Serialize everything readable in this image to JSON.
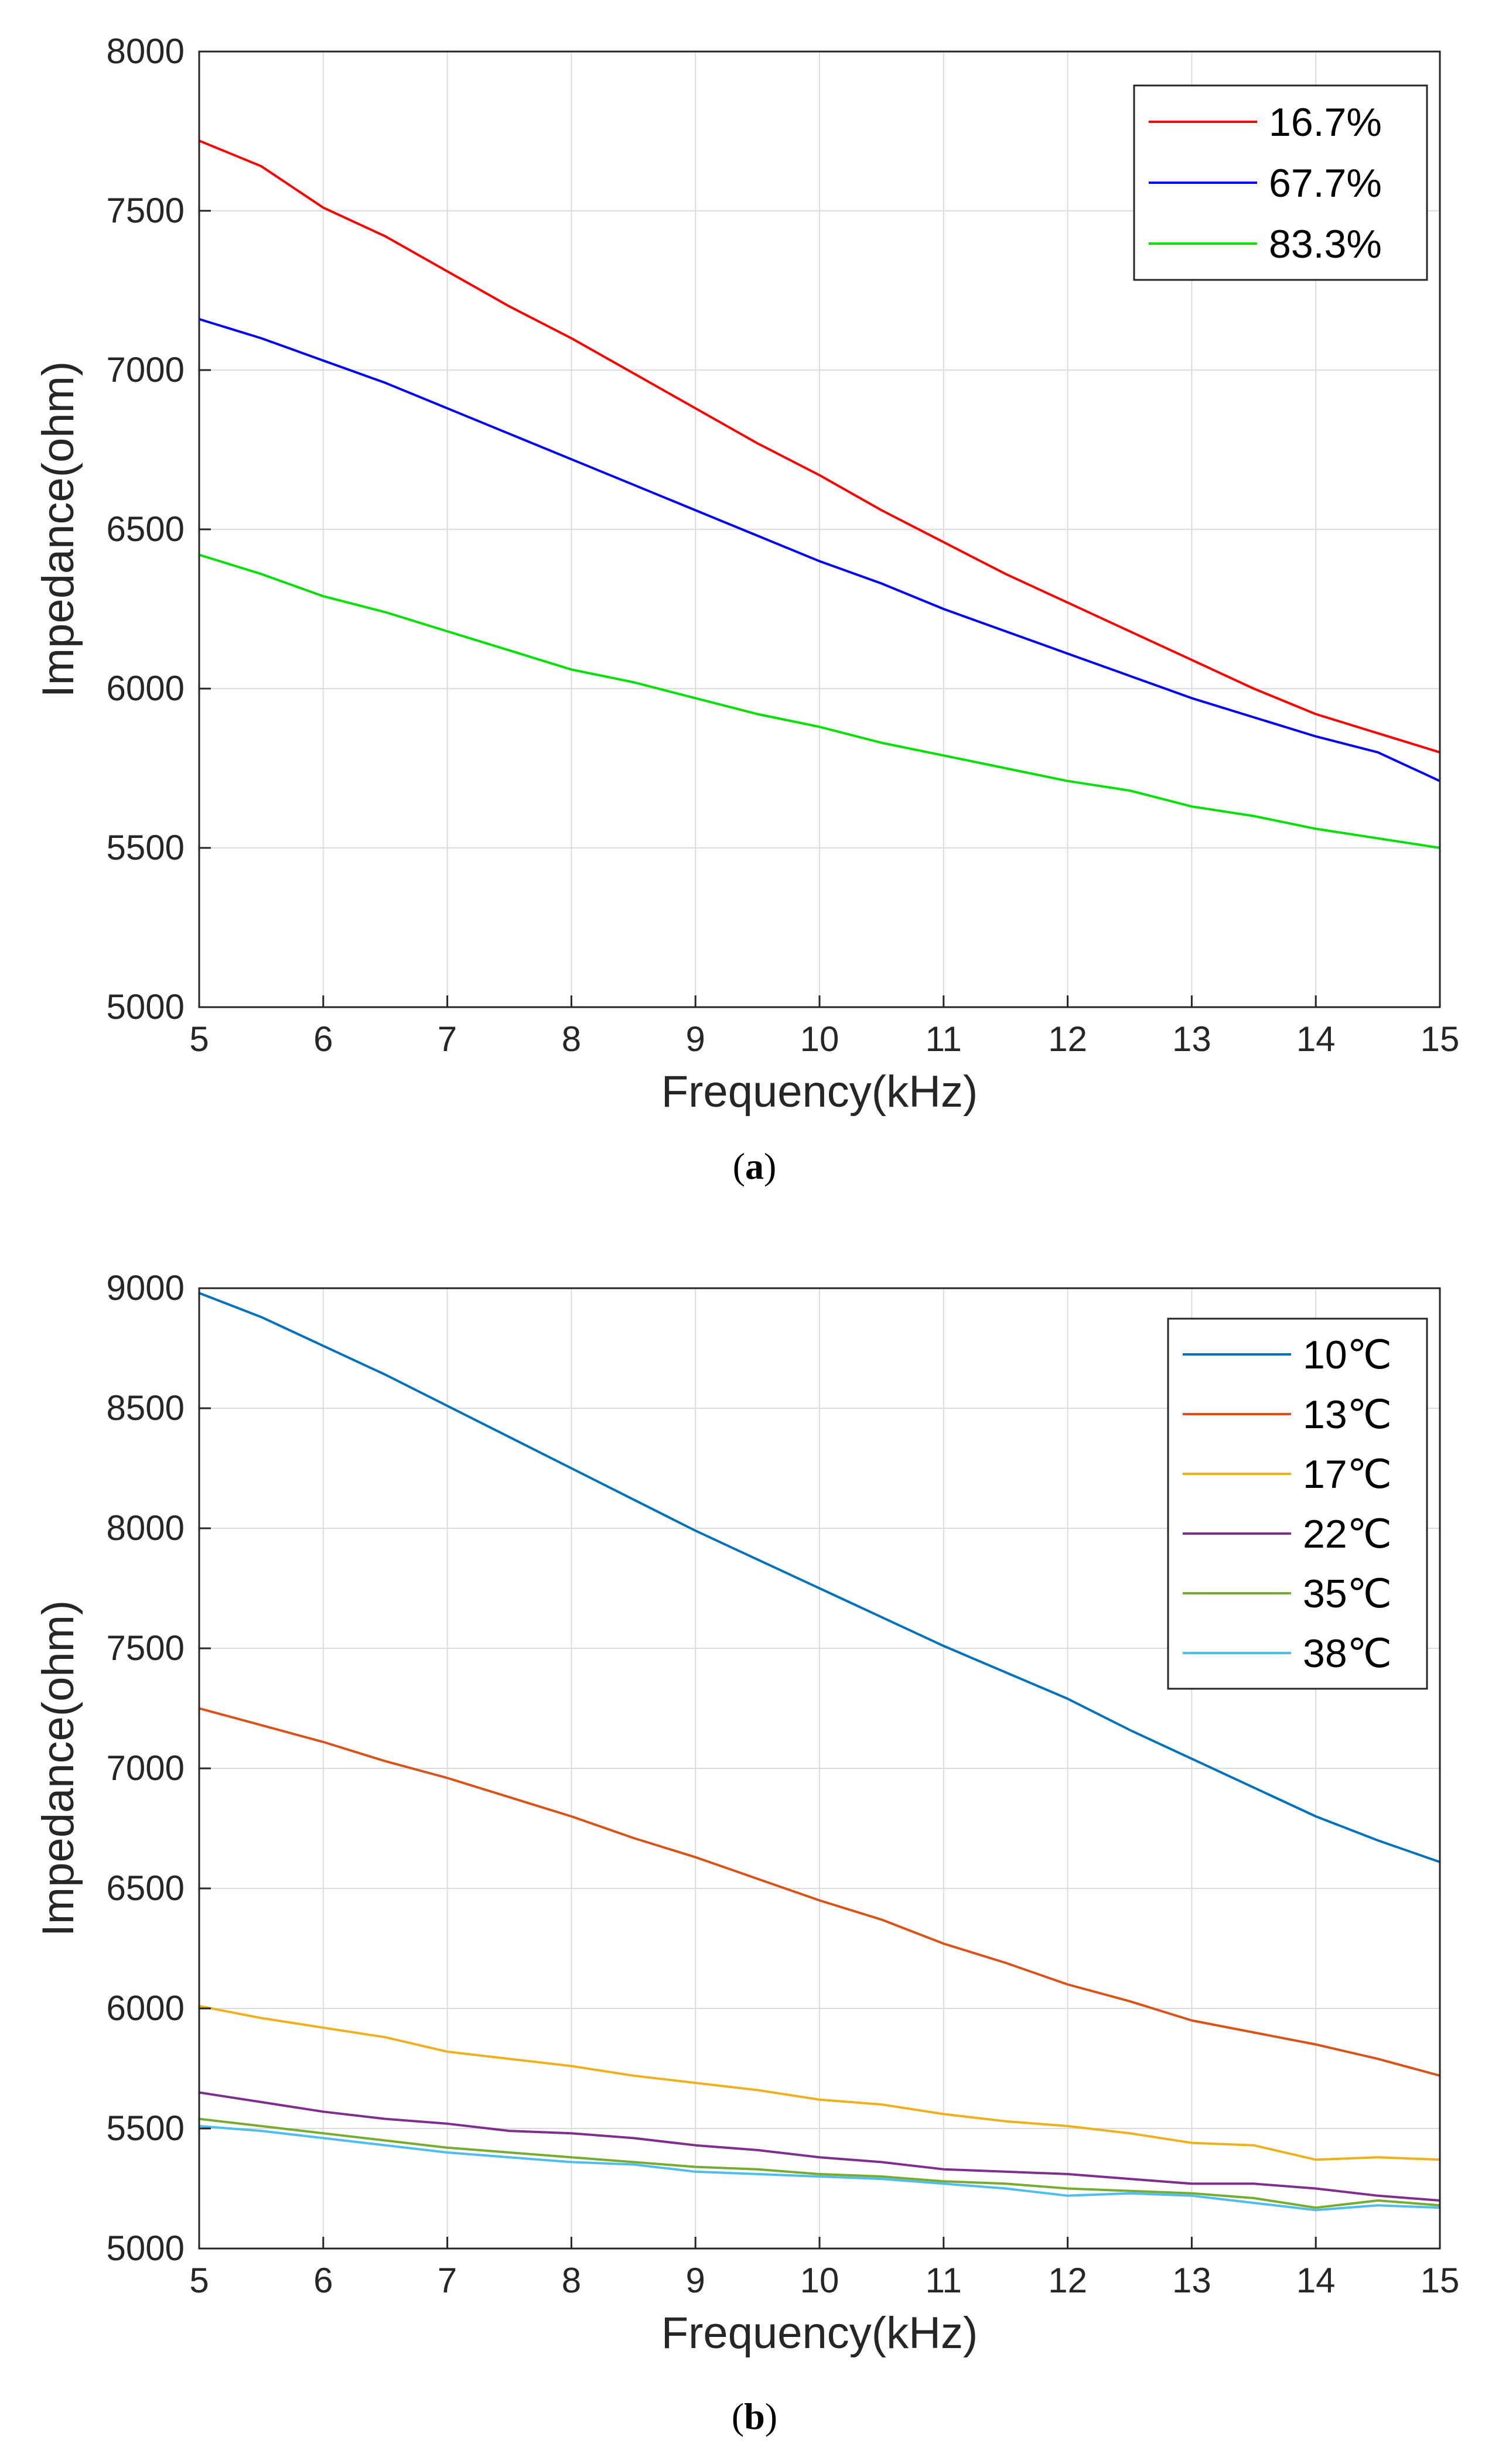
{
  "chart_data": [
    {
      "type": "line",
      "panel_label": "a",
      "title": "",
      "xlabel": "Frequency(kHz)",
      "ylabel": "Impedance(ohm)",
      "xlim": [
        5,
        15
      ],
      "ylim": [
        5000,
        8000
      ],
      "xticks": [
        5,
        6,
        7,
        8,
        9,
        10,
        11,
        12,
        13,
        14,
        15
      ],
      "yticks": [
        5000,
        5500,
        6000,
        6500,
        7000,
        7500,
        8000
      ],
      "grid": true,
      "legend_position": "top-right",
      "series": [
        {
          "name": "16.7%",
          "color": "#ff0000",
          "x": [
            5,
            5.5,
            6,
            6.5,
            7,
            7.5,
            8,
            8.5,
            9,
            9.5,
            10,
            10.5,
            11,
            11.5,
            12,
            12.5,
            13,
            13.5,
            14,
            14.5,
            15
          ],
          "values": [
            7720,
            7640,
            7510,
            7420,
            7310,
            7200,
            7100,
            6990,
            6880,
            6770,
            6670,
            6560,
            6460,
            6360,
            6270,
            6180,
            6090,
            6000,
            5920,
            5860,
            5800
          ]
        },
        {
          "name": "67.7%",
          "color": "#0000ff",
          "x": [
            5,
            5.5,
            6,
            6.5,
            7,
            7.5,
            8,
            8.5,
            9,
            9.5,
            10,
            10.5,
            11,
            11.5,
            12,
            12.5,
            13,
            13.5,
            14,
            14.5,
            15
          ],
          "values": [
            7160,
            7100,
            7030,
            6960,
            6880,
            6800,
            6720,
            6640,
            6560,
            6480,
            6400,
            6330,
            6250,
            6180,
            6110,
            6040,
            5970,
            5910,
            5850,
            5800,
            5710
          ]
        },
        {
          "name": "83.3%",
          "color": "#00e000",
          "x": [
            5,
            5.5,
            6,
            6.5,
            7,
            7.5,
            8,
            8.5,
            9,
            9.5,
            10,
            10.5,
            11,
            11.5,
            12,
            12.5,
            13,
            13.5,
            14,
            14.5,
            15
          ],
          "values": [
            6420,
            6360,
            6290,
            6240,
            6180,
            6120,
            6060,
            6020,
            5970,
            5920,
            5880,
            5830,
            5790,
            5750,
            5710,
            5680,
            5630,
            5600,
            5560,
            5530,
            5500
          ]
        }
      ]
    },
    {
      "type": "line",
      "panel_label": "b",
      "title": "",
      "xlabel": "Frequency(kHz)",
      "ylabel": "Impedance(ohm)",
      "xlim": [
        5,
        15
      ],
      "ylim": [
        5000,
        9000
      ],
      "xticks": [
        5,
        6,
        7,
        8,
        9,
        10,
        11,
        12,
        13,
        14,
        15
      ],
      "yticks": [
        5000,
        5500,
        6000,
        6500,
        7000,
        7500,
        8000,
        8500,
        9000
      ],
      "grid": true,
      "legend_position": "top-right",
      "series": [
        {
          "name": "10℃",
          "color": "#0072bd",
          "x": [
            5,
            5.5,
            6,
            6.5,
            7,
            7.5,
            8,
            8.5,
            9,
            9.5,
            10,
            10.5,
            11,
            11.5,
            12,
            12.5,
            13,
            13.5,
            14,
            14.5,
            15
          ],
          "values": [
            8980,
            8880,
            8760,
            8640,
            8510,
            8380,
            8250,
            8120,
            7990,
            7870,
            7750,
            7630,
            7510,
            7400,
            7290,
            7160,
            7040,
            6920,
            6800,
            6700,
            6610
          ]
        },
        {
          "name": "13℃",
          "color": "#d95319",
          "x": [
            5,
            5.5,
            6,
            6.5,
            7,
            7.5,
            8,
            8.5,
            9,
            9.5,
            10,
            10.5,
            11,
            11.5,
            12,
            12.5,
            13,
            13.5,
            14,
            14.5,
            15
          ],
          "values": [
            7250,
            7180,
            7110,
            7030,
            6960,
            6880,
            6800,
            6710,
            6630,
            6540,
            6450,
            6370,
            6270,
            6190,
            6100,
            6030,
            5950,
            5900,
            5850,
            5790,
            5720
          ]
        },
        {
          "name": "17℃",
          "color": "#edb120",
          "x": [
            5,
            5.5,
            6,
            6.5,
            7,
            7.5,
            8,
            8.5,
            9,
            9.5,
            10,
            10.5,
            11,
            11.5,
            12,
            12.5,
            13,
            13.5,
            14,
            14.5,
            15
          ],
          "values": [
            6010,
            5960,
            5920,
            5880,
            5820,
            5790,
            5760,
            5720,
            5690,
            5660,
            5620,
            5600,
            5560,
            5530,
            5510,
            5480,
            5440,
            5430,
            5370,
            5380,
            5370
          ]
        },
        {
          "name": "22℃",
          "color": "#7e2f8e",
          "x": [
            5,
            5.5,
            6,
            6.5,
            7,
            7.5,
            8,
            8.5,
            9,
            9.5,
            10,
            10.5,
            11,
            11.5,
            12,
            12.5,
            13,
            13.5,
            14,
            14.5,
            15
          ],
          "values": [
            5650,
            5610,
            5570,
            5540,
            5520,
            5490,
            5480,
            5460,
            5430,
            5410,
            5380,
            5360,
            5330,
            5320,
            5310,
            5290,
            5270,
            5270,
            5250,
            5220,
            5200
          ]
        },
        {
          "name": "35℃",
          "color": "#77ac30",
          "x": [
            5,
            5.5,
            6,
            6.5,
            7,
            7.5,
            8,
            8.5,
            9,
            9.5,
            10,
            10.5,
            11,
            11.5,
            12,
            12.5,
            13,
            13.5,
            14,
            14.5,
            15
          ],
          "values": [
            5540,
            5510,
            5480,
            5450,
            5420,
            5400,
            5380,
            5360,
            5340,
            5330,
            5310,
            5300,
            5280,
            5270,
            5250,
            5240,
            5230,
            5210,
            5170,
            5200,
            5180
          ]
        },
        {
          "name": "38℃",
          "color": "#4dbeee",
          "x": [
            5,
            5.5,
            6,
            6.5,
            7,
            7.5,
            8,
            8.5,
            9,
            9.5,
            10,
            10.5,
            11,
            11.5,
            12,
            12.5,
            13,
            13.5,
            14,
            14.5,
            15
          ],
          "values": [
            5510,
            5490,
            5460,
            5430,
            5400,
            5380,
            5360,
            5350,
            5320,
            5310,
            5300,
            5290,
            5270,
            5250,
            5220,
            5230,
            5220,
            5190,
            5160,
            5180,
            5170
          ]
        }
      ]
    }
  ]
}
